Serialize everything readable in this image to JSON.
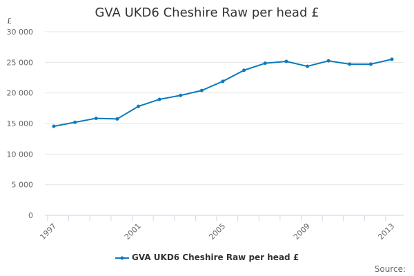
{
  "chart_data": {
    "type": "line",
    "title": "GVA UKD6 Cheshire Raw per head £",
    "ylabel": "£",
    "ylim": [
      0,
      30000
    ],
    "yticks": [
      "0",
      "5 000",
      "10 000",
      "15 000",
      "20 000",
      "25 000",
      "30 000"
    ],
    "xticks": [
      "1997",
      "2001",
      "2005",
      "2009",
      "2013"
    ],
    "grid": true,
    "legend": "bottom",
    "color": "#0a7abf",
    "x": [
      1997,
      1998,
      1999,
      2000,
      2001,
      2002,
      2003,
      2004,
      2005,
      2006,
      2007,
      2008,
      2009,
      2010,
      2011,
      2012,
      2013
    ],
    "series": [
      {
        "name": "GVA UKD6 Cheshire Raw per head £",
        "values": [
          14550,
          15200,
          15850,
          15750,
          17800,
          18950,
          19600,
          20400,
          21900,
          23700,
          24850,
          25150,
          24350,
          25250,
          24700,
          24700,
          25500
        ]
      }
    ]
  },
  "source_label": "Source:"
}
